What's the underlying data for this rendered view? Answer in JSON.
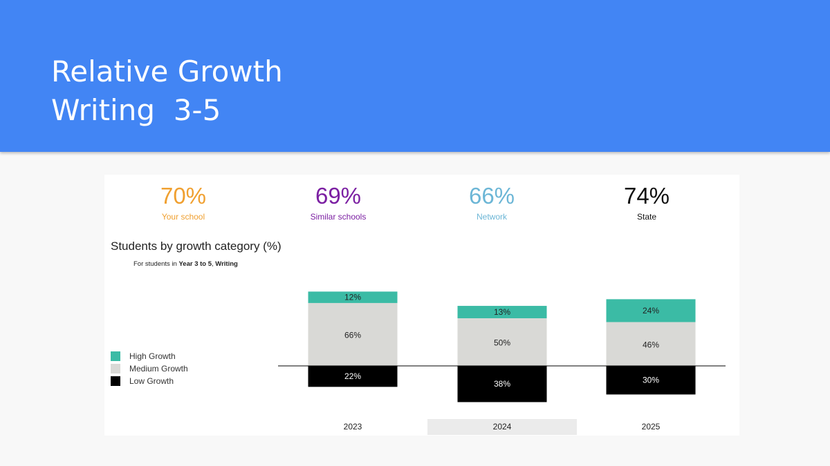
{
  "header": {
    "title_line1": "Relative Growth",
    "title_line2": "Writing  3-5",
    "color": "#4285f4"
  },
  "stats": [
    {
      "value": "70%",
      "label": "Your school",
      "color": "#f0a030"
    },
    {
      "value": "69%",
      "label": "Similar schools",
      "color": "#7b1fa2"
    },
    {
      "value": "66%",
      "label": "Network",
      "color": "#6cb6d6"
    },
    {
      "value": "74%",
      "label": "State",
      "color": "#111111"
    }
  ],
  "chart": {
    "title": "Students by growth category (%)",
    "subtitle_prefix": "For students in ",
    "subtitle_bold1": "Year 3 to 5",
    "subtitle_sep": ", ",
    "subtitle_bold2": "Writing"
  },
  "legend": [
    {
      "label": "High Growth",
      "color": "#3bbba5"
    },
    {
      "label": "Medium Growth",
      "color": "#d9d9d6"
    },
    {
      "label": "Low Growth",
      "color": "#000000"
    }
  ],
  "chart_data": {
    "type": "bar",
    "stacked": true,
    "diverging_baseline": true,
    "categories": [
      "2023",
      "2024",
      "2025"
    ],
    "highlighted_category": "2024",
    "series": [
      {
        "name": "High Growth",
        "values": [
          12,
          13,
          24
        ],
        "labels": [
          "12%",
          "13%",
          "24%"
        ],
        "color": "#3bbba5"
      },
      {
        "name": "Medium Growth",
        "values": [
          66,
          50,
          46
        ],
        "labels": [
          "66%",
          "50%",
          "46%"
        ],
        "color": "#d9d9d6"
      },
      {
        "name": "Low Growth",
        "values": [
          22,
          38,
          30
        ],
        "labels": [
          "22%",
          "38%",
          "30%"
        ],
        "color": "#000000"
      }
    ]
  }
}
